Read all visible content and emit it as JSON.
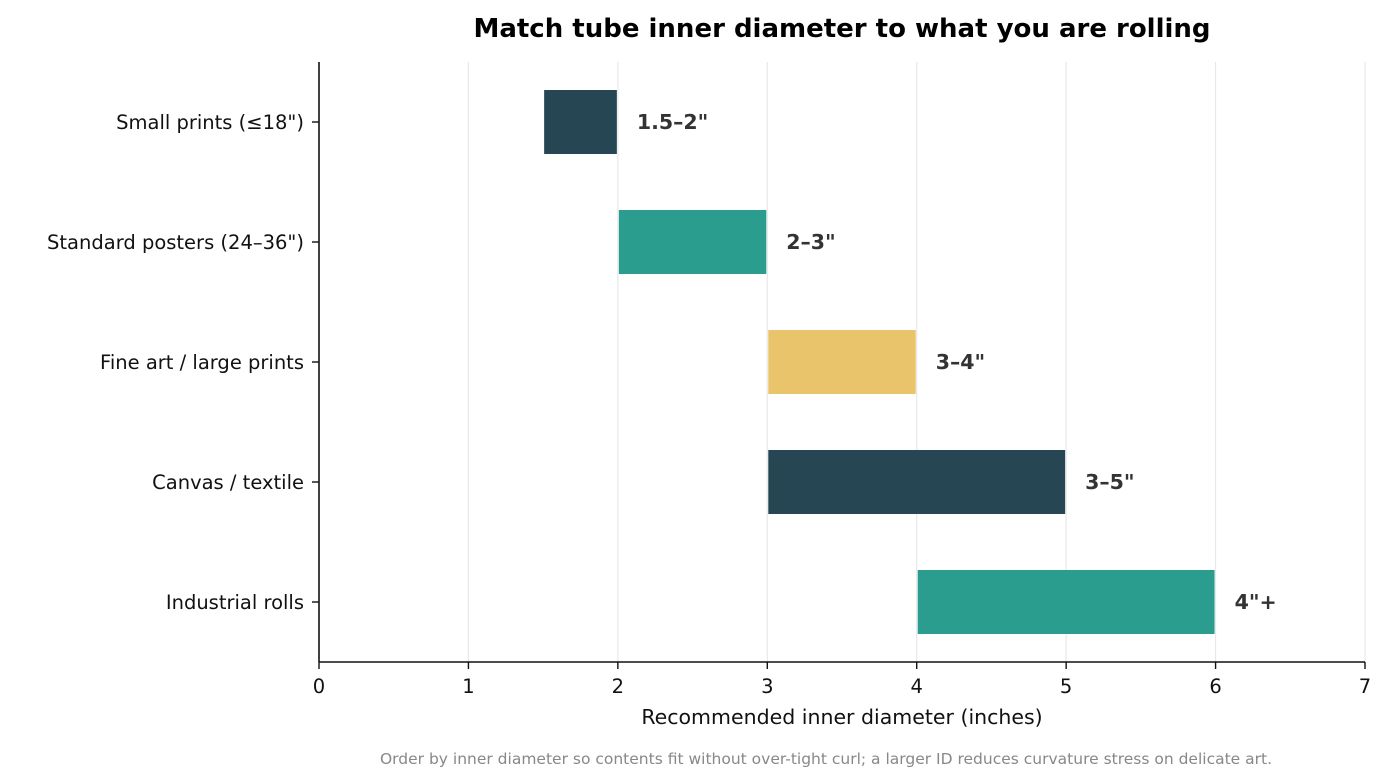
{
  "chart_data": {
    "type": "bar",
    "orientation": "horizontal",
    "title": "Match tube inner diameter to what you are rolling",
    "xlabel": "Recommended inner diameter (inches)",
    "ylabel": "",
    "xlim": [
      0,
      7
    ],
    "xticks": [
      "0",
      "1",
      "2",
      "3",
      "4",
      "5",
      "6",
      "7"
    ],
    "grid": "vertical",
    "categories": [
      "Small prints (≤18\")",
      "Standard posters (24–36\")",
      "Fine art / large prints",
      "Canvas / textile",
      "Industrial rolls"
    ],
    "bars": [
      {
        "start": 1.5,
        "end": 2,
        "label": "1.5–2\"",
        "color": "#264653"
      },
      {
        "start": 2,
        "end": 3,
        "label": "2–3\"",
        "color": "#2a9d8f"
      },
      {
        "start": 3,
        "end": 4,
        "label": "3–4\"",
        "color": "#e9c46a"
      },
      {
        "start": 3,
        "end": 5,
        "label": "3–5\"",
        "color": "#264653"
      },
      {
        "start": 4,
        "end": 6,
        "label": "4\"+",
        "color": "#2a9d8f"
      }
    ],
    "footnote": "Order by inner diameter so contents fit without over-tight curl; a larger ID reduces curvature stress on delicate art."
  }
}
